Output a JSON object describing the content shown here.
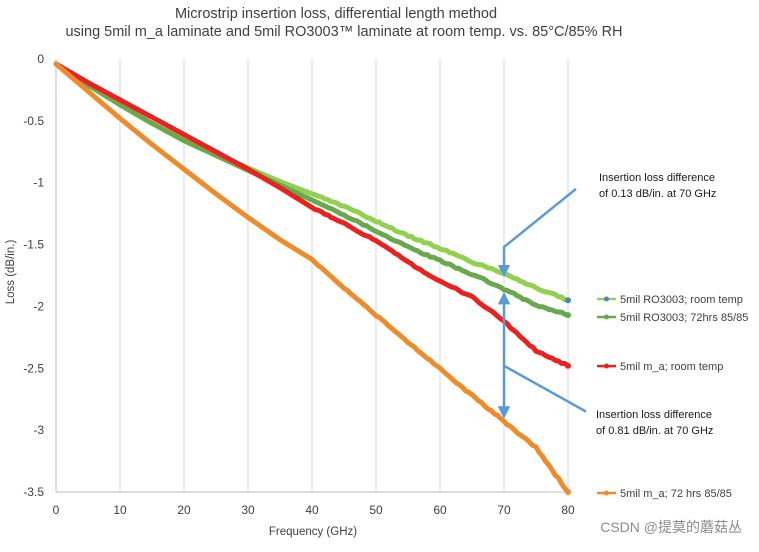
{
  "chart_data": {
    "type": "line",
    "title_line1": "Microstrip insertion loss, differential length method",
    "title_line2": "using 5mil m_a laminate and 5mil RO3003™ laminate at room temp. vs. 85°C/85% RH",
    "xlabel": "Frequency (GHz)",
    "ylabel": "Loss (dB/in.)",
    "xlim": [
      0,
      80
    ],
    "ylim": [
      -3.5,
      0
    ],
    "x_ticks": [
      0,
      10,
      20,
      30,
      40,
      50,
      60,
      70,
      80
    ],
    "y_ticks": [
      0,
      -0.5,
      -1,
      -1.5,
      -2,
      -2.5,
      -3,
      -3.5
    ],
    "x_tick_labels": [
      "0",
      "10",
      "20",
      "30",
      "40",
      "50",
      "60",
      "70",
      "80"
    ],
    "y_tick_labels": [
      "0",
      "-0.5",
      "-1",
      "-1.5",
      "-2",
      "-2.5",
      "-3",
      "-3.5"
    ],
    "grid": "vertical",
    "legend_placement": "right",
    "series": [
      {
        "name": "5mil RO3003; room temp",
        "color": "#92d050",
        "marker_color": "#4f81bd",
        "x": [
          0,
          5,
          10,
          15,
          20,
          25,
          30,
          35,
          40,
          45,
          50,
          55,
          60,
          65,
          70,
          75,
          80
        ],
        "y": [
          -0.04,
          -0.21,
          -0.37,
          -0.52,
          -0.65,
          -0.77,
          -0.88,
          -0.99,
          -1.09,
          -1.19,
          -1.31,
          -1.43,
          -1.53,
          -1.64,
          -1.73,
          -1.85,
          -1.95
        ]
      },
      {
        "name": "5mil RO3003; 72hrs 85/85",
        "color": "#6aa84f",
        "x": [
          0,
          5,
          10,
          15,
          20,
          25,
          30,
          35,
          40,
          45,
          50,
          55,
          60,
          65,
          70,
          75,
          80
        ],
        "y": [
          -0.04,
          -0.21,
          -0.37,
          -0.52,
          -0.66,
          -0.78,
          -0.9,
          -1.02,
          -1.14,
          -1.26,
          -1.39,
          -1.52,
          -1.63,
          -1.74,
          -1.86,
          -1.99,
          -2.07
        ]
      },
      {
        "name": "5mil m_a; room temp",
        "color": "#e8231f",
        "x": [
          0,
          5,
          10,
          15,
          20,
          25,
          30,
          35,
          40,
          45,
          50,
          55,
          60,
          65,
          70,
          75,
          80
        ],
        "y": [
          -0.04,
          -0.19,
          -0.33,
          -0.47,
          -0.61,
          -0.75,
          -0.89,
          -1.04,
          -1.2,
          -1.33,
          -1.47,
          -1.64,
          -1.8,
          -1.92,
          -2.12,
          -2.36,
          -2.48
        ]
      },
      {
        "name": "5mil m_a; 72 hrs 85/85",
        "color": "#ed8c2d",
        "x": [
          0,
          5,
          10,
          15,
          20,
          25,
          30,
          35,
          40,
          45,
          50,
          55,
          60,
          65,
          70,
          75,
          80
        ],
        "y": [
          -0.04,
          -0.26,
          -0.48,
          -0.69,
          -0.89,
          -1.09,
          -1.28,
          -1.46,
          -1.62,
          -1.85,
          -2.07,
          -2.29,
          -2.5,
          -2.72,
          -2.93,
          -3.14,
          -3.5
        ]
      }
    ],
    "annotations": [
      {
        "lines": [
          "Insertion loss difference",
          "of 0.13 dB/in. at 70 GHz"
        ]
      },
      {
        "lines": [
          "Insertion loss difference",
          "of 0.81 dB/in. at 70 GHz"
        ]
      }
    ],
    "watermark": "CSDN @提莫的蘑菇丛",
    "colors": {
      "axis": "#bfbfbf",
      "grid": "#d9d9d9",
      "annotation_arrow": "#5b9bd5",
      "text": "#404040"
    }
  }
}
